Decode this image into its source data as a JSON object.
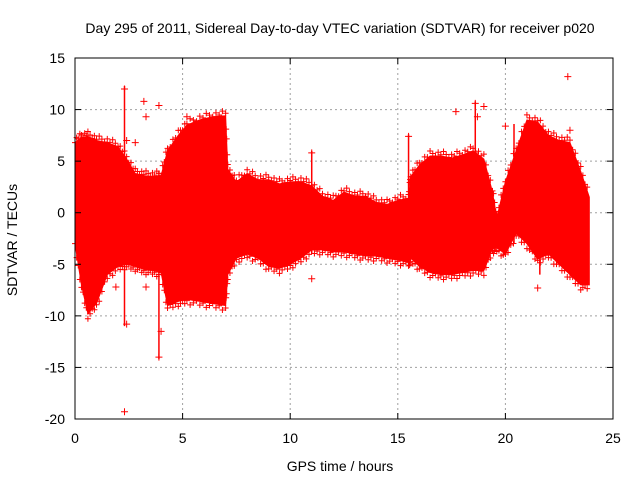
{
  "chart_data": {
    "type": "scatter",
    "title": "Day 295 of 2011, Sidereal Day-to-day VTEC variation (SDTVAR) for receiver p020",
    "xlabel": "GPS time / hours",
    "ylabel": "SDTVAR / TECUs",
    "xlim": [
      0,
      25
    ],
    "ylim": [
      -20,
      15
    ],
    "xticks": [
      0,
      5,
      10,
      15,
      20,
      25
    ],
    "yticks": [
      -20,
      -15,
      -10,
      -5,
      0,
      5,
      10,
      15
    ],
    "grid": true,
    "marker": "+",
    "color": "#ff0000",
    "envelope": {
      "x": [
        0.0,
        0.3,
        0.6,
        1.0,
        1.5,
        2.0,
        2.4,
        2.8,
        3.2,
        3.6,
        4.0,
        4.3,
        4.8,
        5.2,
        5.8,
        6.4,
        7.0,
        7.1,
        7.5,
        8.0,
        8.5,
        9.0,
        9.5,
        10.0,
        10.5,
        11.0,
        11.5,
        12.0,
        12.5,
        13.0,
        13.5,
        14.0,
        14.5,
        15.0,
        15.5,
        15.6,
        16.0,
        16.5,
        17.0,
        17.5,
        18.0,
        18.5,
        19.0,
        19.4,
        19.6,
        20.0,
        20.5,
        21.0,
        21.5,
        22.0,
        22.5,
        23.0,
        23.5,
        23.9
      ],
      "upper": [
        6.8,
        7.3,
        7.4,
        7.0,
        6.8,
        6.4,
        5.2,
        3.8,
        3.6,
        3.5,
        3.6,
        6.0,
        7.5,
        8.5,
        9.0,
        9.3,
        9.4,
        4.2,
        3.0,
        3.8,
        3.2,
        3.2,
        2.8,
        3.0,
        3.0,
        2.6,
        1.6,
        1.2,
        2.0,
        1.6,
        1.6,
        1.0,
        0.8,
        1.2,
        1.4,
        3.5,
        4.6,
        5.5,
        5.5,
        5.3,
        5.6,
        6.0,
        5.2,
        2.0,
        -0.5,
        3.0,
        6.0,
        9.0,
        8.8,
        7.5,
        7.0,
        6.8,
        4.0,
        1.5
      ],
      "lower": [
        -3.0,
        -7.0,
        -9.8,
        -8.8,
        -6.0,
        -5.2,
        -5.0,
        -5.2,
        -5.5,
        -5.6,
        -5.8,
        -9.0,
        -8.6,
        -8.4,
        -8.6,
        -8.8,
        -9.0,
        -6.0,
        -4.4,
        -4.0,
        -4.4,
        -5.2,
        -5.4,
        -5.0,
        -4.4,
        -3.6,
        -3.6,
        -3.8,
        -3.8,
        -4.0,
        -4.2,
        -4.2,
        -4.4,
        -4.6,
        -4.8,
        -4.4,
        -5.2,
        -5.8,
        -6.0,
        -6.0,
        -5.8,
        -5.6,
        -5.6,
        -3.5,
        -3.4,
        -4.0,
        -2.0,
        -3.0,
        -4.5,
        -4.0,
        -5.0,
        -6.0,
        -7.0,
        -7.0
      ]
    },
    "outliers": [
      {
        "x": 2.3,
        "y": -19.3
      },
      {
        "x": 2.3,
        "y": 12.0
      },
      {
        "x": 2.4,
        "y": -10.8
      },
      {
        "x": 2.4,
        "y": 7.0
      },
      {
        "x": 3.2,
        "y": 10.8
      },
      {
        "x": 3.3,
        "y": 9.3
      },
      {
        "x": 3.3,
        "y": -7.2
      },
      {
        "x": 3.9,
        "y": 10.4
      },
      {
        "x": 3.9,
        "y": -14.0
      },
      {
        "x": 4.0,
        "y": -11.5
      },
      {
        "x": 2.8,
        "y": 6.8
      },
      {
        "x": 1.9,
        "y": -7.2
      },
      {
        "x": 5.2,
        "y": 9.3
      },
      {
        "x": 11.0,
        "y": -6.4
      },
      {
        "x": 11.0,
        "y": 5.8
      },
      {
        "x": 15.5,
        "y": 7.4
      },
      {
        "x": 17.7,
        "y": 9.8
      },
      {
        "x": 18.6,
        "y": 10.6
      },
      {
        "x": 18.7,
        "y": 9.3
      },
      {
        "x": 19.0,
        "y": 10.3
      },
      {
        "x": 20.0,
        "y": 8.4
      },
      {
        "x": 21.5,
        "y": -7.3
      },
      {
        "x": 22.9,
        "y": 13.2
      },
      {
        "x": 23.0,
        "y": 8.0
      }
    ],
    "spikes": [
      {
        "x": 2.3,
        "y1": -11.0,
        "y2": 12.3
      },
      {
        "x": 3.9,
        "y1": -14.2,
        "y2": 4.0
      },
      {
        "x": 11.0,
        "y1": -4.0,
        "y2": 6.0
      },
      {
        "x": 15.5,
        "y1": -5.0,
        "y2": 7.6
      },
      {
        "x": 18.6,
        "y1": -5.0,
        "y2": 10.8
      },
      {
        "x": 20.4,
        "y1": -3.0,
        "y2": 8.6
      },
      {
        "x": 21.6,
        "y1": -6.0,
        "y2": 7.0
      }
    ]
  }
}
